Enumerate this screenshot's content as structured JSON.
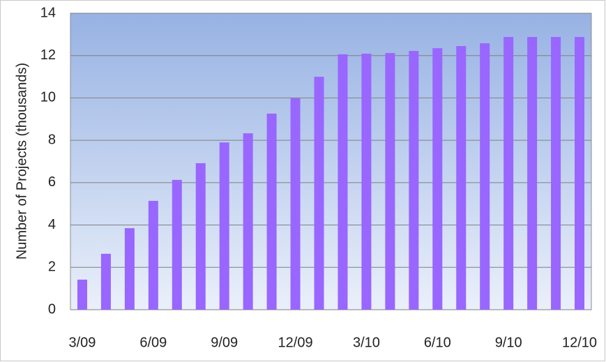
{
  "chart_data": {
    "type": "bar",
    "y_label": "Number of Projects (thousands)",
    "categories": [
      "3/09",
      null,
      null,
      "6/09",
      null,
      null,
      "9/09",
      null,
      null,
      "12/09",
      null,
      null,
      "3/10",
      null,
      null,
      "6/10",
      null,
      null,
      "9/10",
      null,
      null,
      "12/10"
    ],
    "values": [
      1.42,
      2.64,
      3.85,
      5.14,
      6.13,
      6.92,
      7.9,
      8.33,
      9.26,
      9.98,
      11.0,
      12.06,
      12.09,
      12.12,
      12.22,
      12.35,
      12.45,
      12.58,
      12.88,
      12.88,
      12.88,
      12.88
    ],
    "color": "#9966ff",
    "ylim": [
      0,
      14
    ],
    "yticks": [
      0,
      2,
      4,
      6,
      8,
      10,
      12,
      14
    ],
    "grid": true
  }
}
